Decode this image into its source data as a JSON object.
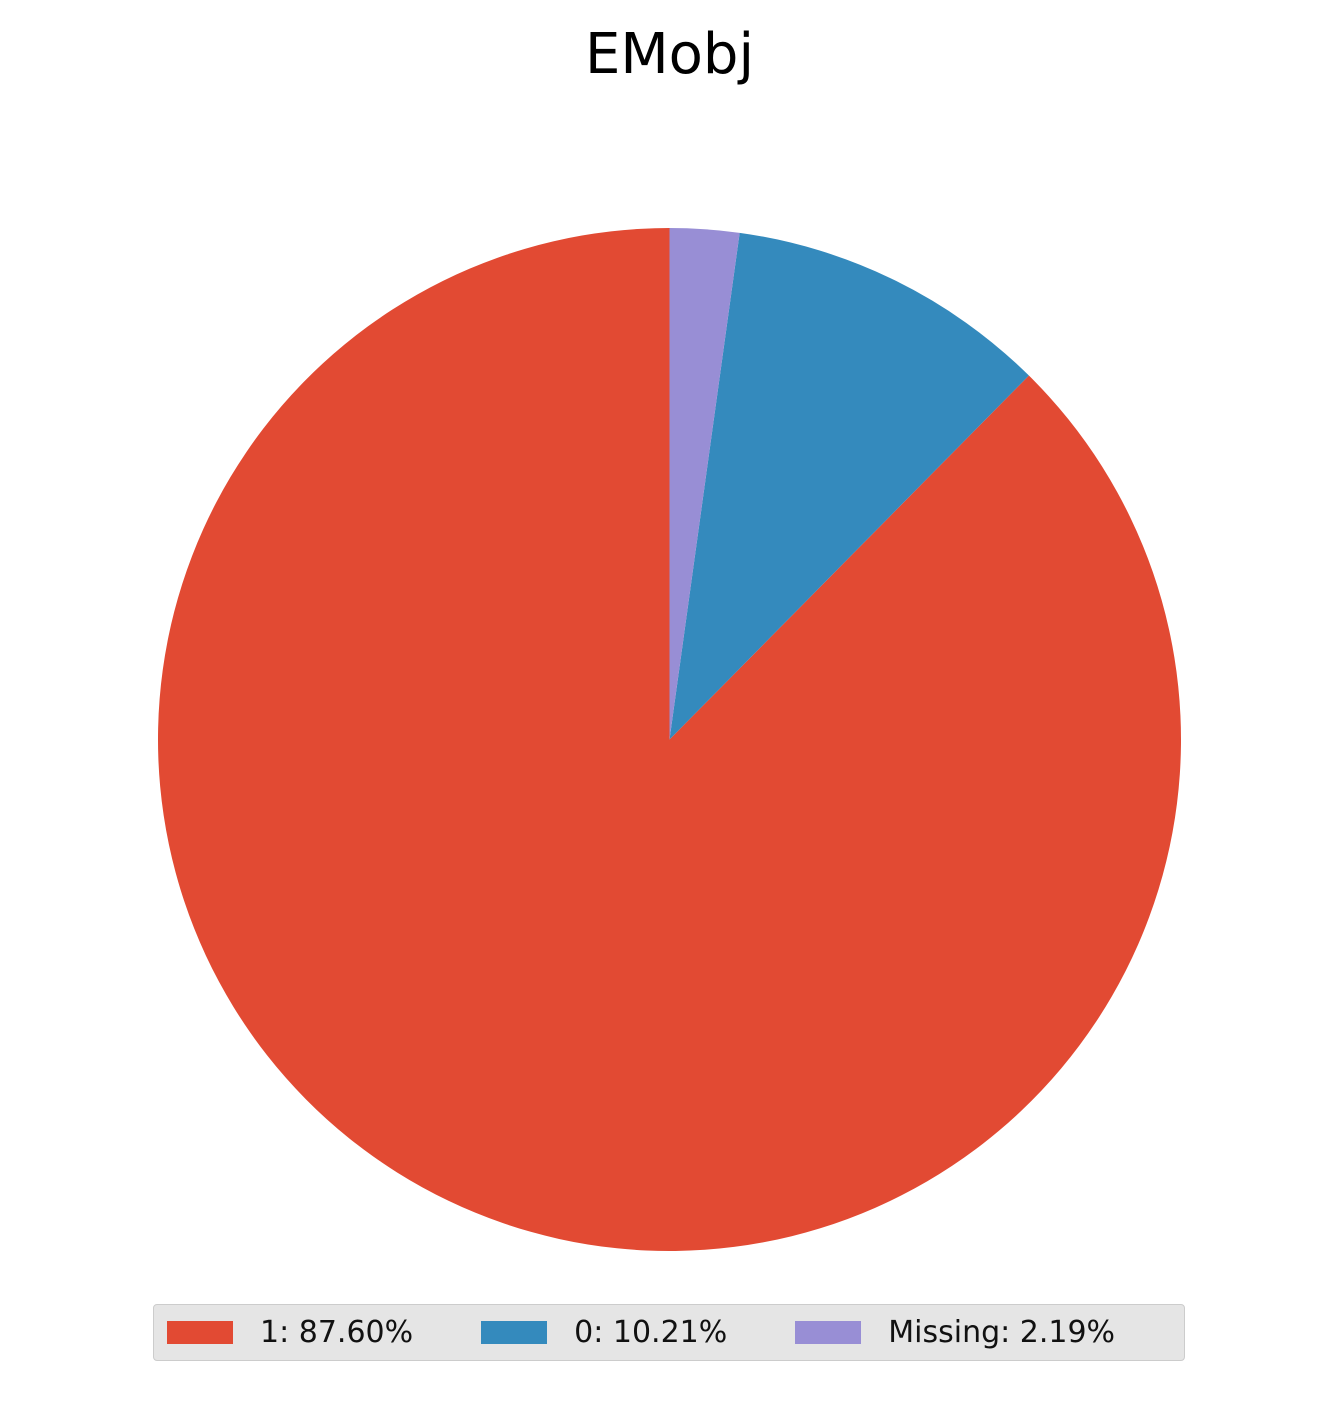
{
  "chart_data": {
    "type": "pie",
    "title": "EMobj",
    "slices": [
      {
        "label": "1",
        "value": 87.6,
        "legend_text": "1: 87.60%",
        "color": "#E24A33"
      },
      {
        "label": "0",
        "value": 10.21,
        "legend_text": "0: 10.21%",
        "color": "#348ABD"
      },
      {
        "label": "Missing",
        "value": 2.19,
        "legend_text": "Missing: 2.19%",
        "color": "#988ED5"
      }
    ],
    "start_angle": "top",
    "direction": "counterclockwise",
    "legend_placement": "bottom-center"
  }
}
